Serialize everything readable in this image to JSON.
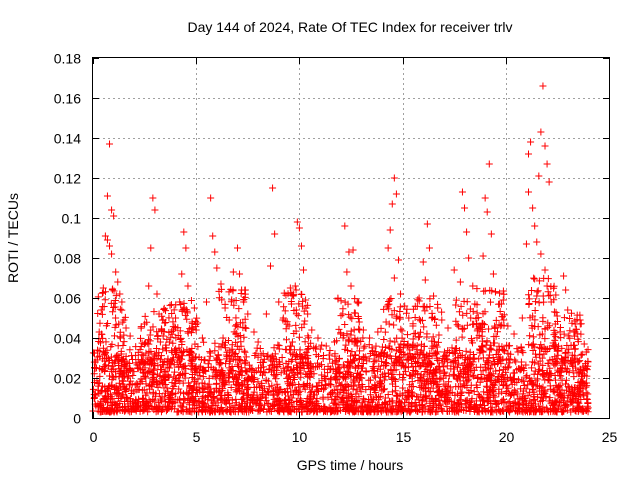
{
  "chart_data": {
    "type": "scatter",
    "title": "Day 144 of 2024, Rate Of TEC Index for receiver trlv",
    "xlabel": "GPS time / hours",
    "ylabel": "ROTI / TECUs",
    "xlim": [
      0,
      25
    ],
    "ylim": [
      0,
      0.18
    ],
    "xticks": [
      "0",
      "5",
      "10",
      "15",
      "20",
      "25"
    ],
    "yticks": [
      "0",
      "0.02",
      "0.04",
      "0.06",
      "0.08",
      "0.1",
      "0.12",
      "0.14",
      "0.16",
      "0.18"
    ],
    "grid": true,
    "marker": "+",
    "color": "#ff0000",
    "series": [
      {
        "name": "ROTI",
        "points": [
          [
            0.8,
            0.137
          ],
          [
            0.7,
            0.111
          ],
          [
            0.9,
            0.104
          ],
          [
            1.0,
            0.101
          ],
          [
            0.6,
            0.091
          ],
          [
            0.7,
            0.089
          ],
          [
            0.8,
            0.086
          ],
          [
            0.9,
            0.082
          ],
          [
            1.1,
            0.073
          ],
          [
            1.2,
            0.068
          ],
          [
            1.3,
            0.062
          ],
          [
            0.5,
            0.065
          ],
          [
            0.4,
            0.054
          ],
          [
            1.4,
            0.058
          ],
          [
            1.5,
            0.049
          ],
          [
            1.6,
            0.045
          ],
          [
            0.3,
            0.043
          ],
          [
            1.8,
            0.041
          ],
          [
            2.9,
            0.11
          ],
          [
            3.0,
            0.104
          ],
          [
            2.8,
            0.085
          ],
          [
            3.1,
            0.062
          ],
          [
            2.7,
            0.066
          ],
          [
            3.2,
            0.052
          ],
          [
            2.5,
            0.047
          ],
          [
            3.4,
            0.041
          ],
          [
            3.7,
            0.038
          ],
          [
            3.9,
            0.044
          ],
          [
            4.4,
            0.093
          ],
          [
            4.5,
            0.085
          ],
          [
            4.3,
            0.072
          ],
          [
            4.6,
            0.066
          ],
          [
            4.2,
            0.058
          ],
          [
            4.0,
            0.05
          ],
          [
            4.8,
            0.048
          ],
          [
            5.0,
            0.044
          ],
          [
            5.3,
            0.04
          ],
          [
            5.7,
            0.11
          ],
          [
            5.8,
            0.091
          ],
          [
            5.9,
            0.083
          ],
          [
            6.0,
            0.075
          ],
          [
            6.2,
            0.067
          ],
          [
            5.5,
            0.058
          ],
          [
            6.4,
            0.055
          ],
          [
            6.6,
            0.049
          ],
          [
            6.8,
            0.073
          ],
          [
            7.0,
            0.085
          ],
          [
            7.1,
            0.072
          ],
          [
            7.2,
            0.064
          ],
          [
            7.3,
            0.058
          ],
          [
            7.5,
            0.052
          ],
          [
            6.9,
            0.046
          ],
          [
            7.8,
            0.043
          ],
          [
            8.0,
            0.038
          ],
          [
            8.7,
            0.115
          ],
          [
            8.8,
            0.092
          ],
          [
            8.6,
            0.076
          ],
          [
            9.0,
            0.058
          ],
          [
            8.4,
            0.052
          ],
          [
            9.2,
            0.049
          ],
          [
            9.5,
            0.046
          ],
          [
            9.7,
            0.061
          ],
          [
            9.9,
            0.098
          ],
          [
            10.0,
            0.095
          ],
          [
            10.1,
            0.086
          ],
          [
            10.2,
            0.074
          ],
          [
            9.8,
            0.066
          ],
          [
            10.3,
            0.059
          ],
          [
            10.4,
            0.052
          ],
          [
            10.6,
            0.044
          ],
          [
            10.9,
            0.04
          ],
          [
            11.3,
            0.036
          ],
          [
            11.7,
            0.038
          ],
          [
            12.0,
            0.042
          ],
          [
            12.2,
            0.096
          ],
          [
            12.4,
            0.083
          ],
          [
            12.3,
            0.073
          ],
          [
            12.6,
            0.084
          ],
          [
            12.5,
            0.066
          ],
          [
            12.8,
            0.058
          ],
          [
            12.1,
            0.052
          ],
          [
            12.9,
            0.048
          ],
          [
            13.1,
            0.044
          ],
          [
            13.4,
            0.04
          ],
          [
            13.8,
            0.043
          ],
          [
            14.2,
            0.048
          ],
          [
            14.4,
            0.094
          ],
          [
            14.5,
            0.107
          ],
          [
            14.6,
            0.12
          ],
          [
            14.7,
            0.112
          ],
          [
            14.3,
            0.085
          ],
          [
            14.8,
            0.079
          ],
          [
            14.6,
            0.07
          ],
          [
            14.9,
            0.062
          ],
          [
            15.1,
            0.056
          ],
          [
            15.3,
            0.05
          ],
          [
            15.5,
            0.046
          ],
          [
            15.8,
            0.06
          ],
          [
            16.0,
            0.078
          ],
          [
            16.2,
            0.097
          ],
          [
            16.3,
            0.085
          ],
          [
            16.1,
            0.069
          ],
          [
            16.5,
            0.061
          ],
          [
            16.7,
            0.055
          ],
          [
            16.9,
            0.049
          ],
          [
            17.2,
            0.045
          ],
          [
            17.5,
            0.074
          ],
          [
            17.9,
            0.113
          ],
          [
            18.0,
            0.105
          ],
          [
            18.1,
            0.093
          ],
          [
            18.2,
            0.08
          ],
          [
            17.8,
            0.068
          ],
          [
            18.4,
            0.066
          ],
          [
            18.5,
            0.057
          ],
          [
            18.3,
            0.05
          ],
          [
            18.7,
            0.046
          ],
          [
            19.0,
            0.11
          ],
          [
            19.2,
            0.127
          ],
          [
            19.1,
            0.103
          ],
          [
            19.3,
            0.092
          ],
          [
            18.9,
            0.081
          ],
          [
            19.4,
            0.072
          ],
          [
            19.5,
            0.063
          ],
          [
            19.7,
            0.057
          ],
          [
            19.9,
            0.049
          ],
          [
            20.1,
            0.046
          ],
          [
            20.4,
            0.042
          ],
          [
            20.8,
            0.05
          ],
          [
            21.0,
            0.087
          ],
          [
            21.1,
            0.113
          ],
          [
            21.1,
            0.132
          ],
          [
            21.2,
            0.138
          ],
          [
            21.3,
            0.105
          ],
          [
            21.4,
            0.096
          ],
          [
            21.5,
            0.088
          ],
          [
            21.6,
            0.121
          ],
          [
            21.7,
            0.143
          ],
          [
            21.8,
            0.166
          ],
          [
            21.9,
            0.136
          ],
          [
            22.0,
            0.127
          ],
          [
            22.1,
            0.118
          ],
          [
            21.7,
            0.082
          ],
          [
            21.9,
            0.074
          ],
          [
            22.0,
            0.066
          ],
          [
            22.2,
            0.058
          ],
          [
            21.5,
            0.061
          ],
          [
            21.3,
            0.051
          ],
          [
            22.4,
            0.047
          ],
          [
            22.8,
            0.071
          ],
          [
            22.9,
            0.064
          ],
          [
            23.0,
            0.054
          ],
          [
            23.3,
            0.043
          ],
          [
            23.6,
            0.049
          ],
          [
            23.8,
            0.037
          ],
          [
            23.9,
            0.033
          ]
        ],
        "base_band": {
          "x": [
            0,
            24
          ],
          "y": [
            0.003,
            0.03
          ],
          "note": "dense continuous band of points"
        }
      }
    ]
  }
}
